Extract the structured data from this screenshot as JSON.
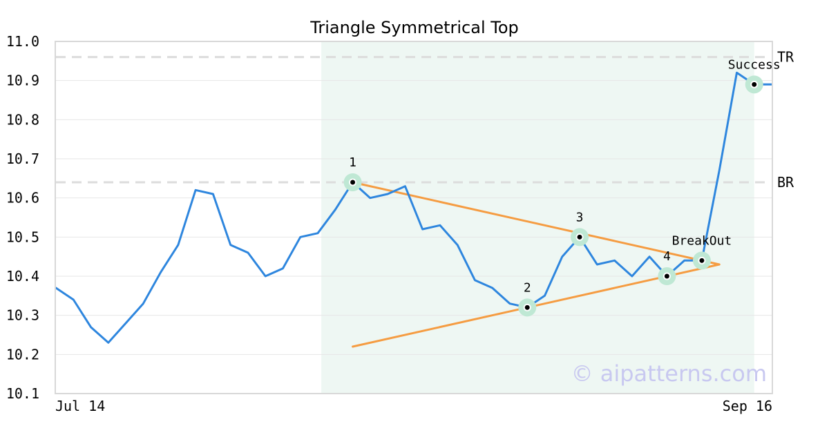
{
  "chart_data": {
    "type": "line",
    "title": "Triangle Symmetrical Top",
    "x_tick_labels": [
      "Jul 14",
      "Sep 16"
    ],
    "ylim": [
      10.1,
      11.0
    ],
    "y_ticks": [
      "10.1",
      "10.2",
      "10.3",
      "10.4",
      "10.5",
      "10.6",
      "10.7",
      "10.8",
      "10.9",
      "11.0"
    ],
    "grid": true,
    "series": [
      {
        "color": "#2e86de",
        "values": [
          10.37,
          10.34,
          10.27,
          10.23,
          10.28,
          10.33,
          10.41,
          10.48,
          10.62,
          10.61,
          10.48,
          10.46,
          10.4,
          10.42,
          10.5,
          10.51,
          10.57,
          10.64,
          10.6,
          10.61,
          10.63,
          10.52,
          10.53,
          10.48,
          10.39,
          10.37,
          10.33,
          10.32,
          10.35,
          10.45,
          10.5,
          10.43,
          10.44,
          10.4,
          10.45,
          10.4,
          10.44,
          10.44,
          10.67,
          10.92,
          10.89,
          10.89
        ]
      }
    ],
    "trendlines": [
      {
        "color": "#f59c42",
        "from": [
          17,
          10.64
        ],
        "to": [
          38,
          10.43
        ]
      },
      {
        "color": "#f59c42",
        "from": [
          17,
          10.22
        ],
        "to": [
          38,
          10.43
        ]
      }
    ],
    "reference_lines": [
      {
        "label": "TR",
        "value": 10.96
      },
      {
        "label": "BR",
        "value": 10.64
      }
    ],
    "highlight_region": {
      "x_start": 15.2,
      "x_end": 40.0,
      "color": "#eef7f3"
    },
    "annotations": [
      {
        "label": "1",
        "x": 17,
        "y": 10.64
      },
      {
        "label": "2",
        "x": 27,
        "y": 10.32
      },
      {
        "label": "3",
        "x": 30,
        "y": 10.5
      },
      {
        "label": "4",
        "x": 35,
        "y": 10.4
      },
      {
        "label": "BreakOut",
        "x": 37,
        "y": 10.44
      },
      {
        "label": "Success",
        "x": 40,
        "y": 10.89
      }
    ]
  },
  "watermark": "© aipatterns.com"
}
